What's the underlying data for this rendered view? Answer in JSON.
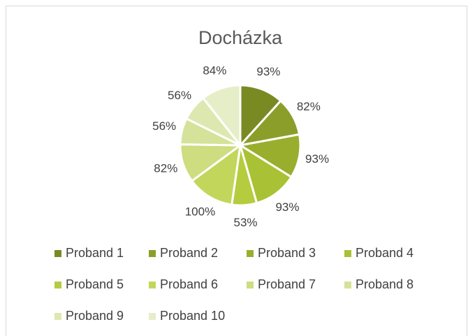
{
  "chart_data": {
    "type": "pie",
    "title": "Docházka",
    "categories": [
      "Proband 1",
      "Proband 2",
      "Proband 3",
      "Proband 4",
      "Proband 5",
      "Proband 6",
      "Proband 7",
      "Proband 8",
      "Proband 9",
      "Proband 10"
    ],
    "values": [
      93,
      82,
      93,
      93,
      53,
      100,
      82,
      56,
      56,
      84
    ],
    "value_labels": [
      "93%",
      "82%",
      "93%",
      "93%",
      "53%",
      "100%",
      "82%",
      "56%",
      "56%",
      "84%"
    ],
    "colors": [
      "#7a8a23",
      "#8c9e2a",
      "#9aae2e",
      "#a9c134",
      "#b5cc3f",
      "#c2d65c",
      "#cddd7f",
      "#d5e29a",
      "#dde8b0",
      "#e6eec8"
    ],
    "legend": "bottom"
  }
}
